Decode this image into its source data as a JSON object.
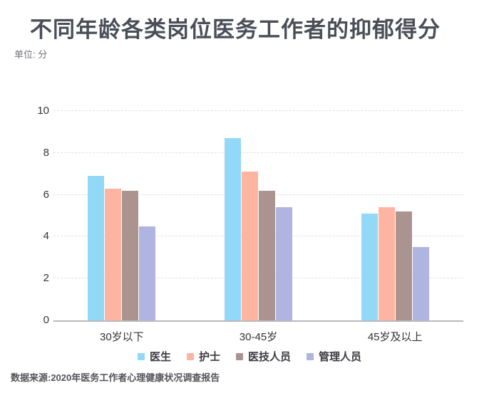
{
  "header": {
    "title": "不同年龄各类岗位医务工作者的抑郁得分",
    "unit_label": "单位: 分"
  },
  "chart_data": {
    "type": "bar",
    "title": "不同年龄各类岗位医务工作者的抑郁得分",
    "unit": "分",
    "categories": [
      "30岁以下",
      "30-45岁",
      "45岁及以上"
    ],
    "category_ids": [
      "under-30",
      "30-45",
      "45-plus"
    ],
    "series": [
      {
        "id": "doctor",
        "name": "医生",
        "color": "#92D8F7",
        "values": [
          6.9,
          8.7,
          5.1
        ]
      },
      {
        "id": "nurse",
        "name": "护士",
        "color": "#FDB5A1",
        "values": [
          6.3,
          7.1,
          5.4
        ]
      },
      {
        "id": "medtech",
        "name": "医技人员",
        "color": "#AB9390",
        "values": [
          6.2,
          6.2,
          5.2
        ]
      },
      {
        "id": "admin",
        "name": "管理人员",
        "color": "#AFB4E0",
        "values": [
          4.5,
          5.4,
          3.5
        ]
      }
    ],
    "ylim": [
      0,
      10
    ],
    "yticks": [
      0,
      2,
      4,
      6,
      8,
      10
    ],
    "grid": "horizontal-dashed",
    "legend_position": "bottom-center"
  },
  "footer": {
    "source": "数据来源:2020年医务工作者心理健康状况调查报告"
  },
  "colors": {
    "background": "#FFFFFF",
    "title_text": "#4A4E57",
    "subtitle_text": "#72727A",
    "axis_text": "#35353B",
    "axis_line": "#B9B9BE",
    "gridline": "#E2E2E6",
    "source_text": "#53535A"
  }
}
